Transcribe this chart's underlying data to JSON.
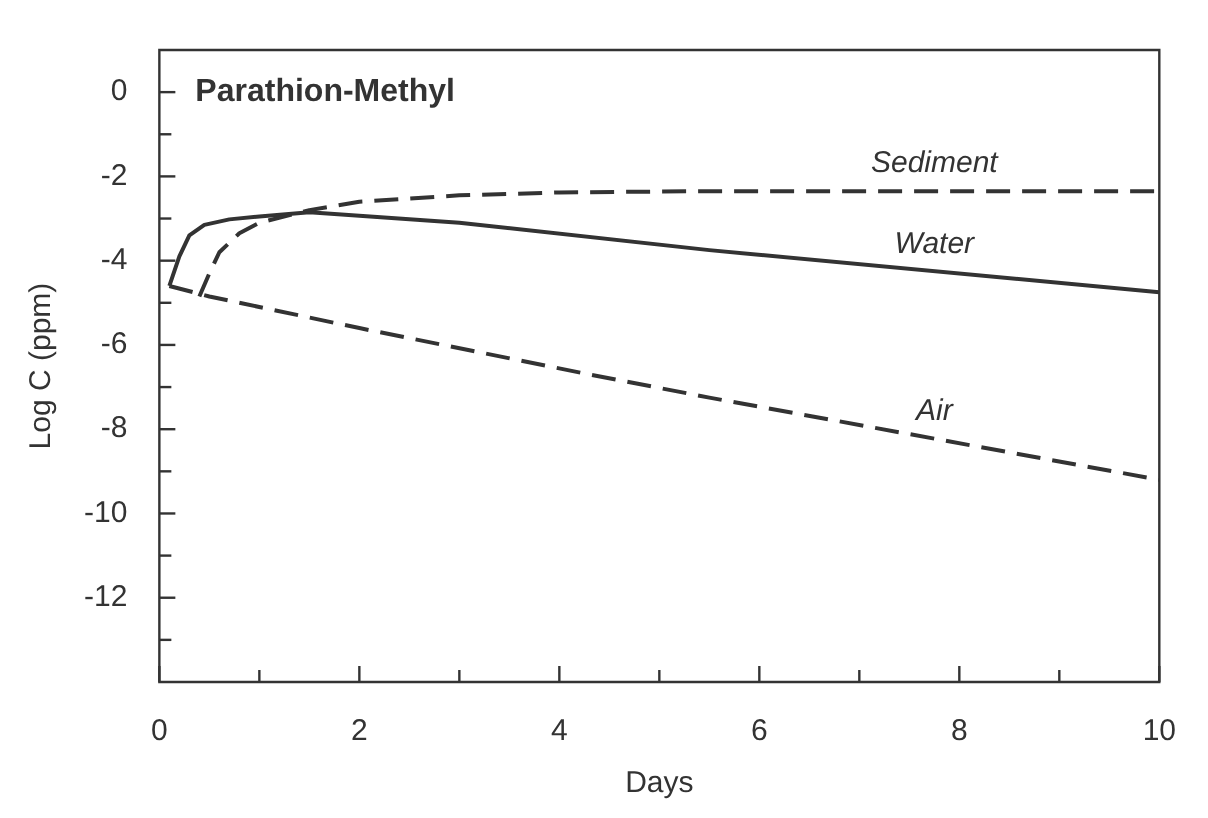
{
  "chart_data": {
    "type": "line",
    "title": "Parathion-Methyl",
    "xlabel": "Days",
    "ylabel": "Log C (ppm)",
    "xlim": [
      0,
      10
    ],
    "xticks": [
      0,
      {
        "value": 1,
        "label": null
      },
      2,
      {
        "value": 3,
        "label": null
      },
      4,
      {
        "value": 5,
        "label": null
      },
      6,
      {
        "value": 7,
        "label": null
      },
      8,
      {
        "value": 9,
        "label": null
      },
      10
    ],
    "ylim": [
      -14,
      1
    ],
    "yticks": [
      {
        "value": -13,
        "label": null
      },
      -12,
      {
        "value": -11,
        "label": null
      },
      -10,
      {
        "value": -9,
        "label": null
      },
      -8,
      {
        "value": -7,
        "label": null
      },
      -6,
      {
        "value": -5,
        "label": null
      },
      -4,
      {
        "value": -3,
        "label": null
      },
      -2,
      {
        "value": -1,
        "label": null
      },
      0
    ],
    "grid": false,
    "legend": false,
    "marker": "none",
    "series": [
      {
        "name": "Sediment",
        "color": "#333333",
        "line_style": "dashed",
        "x": [
          0.4,
          0.5,
          0.6,
          0.8,
          1.0,
          1.5,
          2,
          3,
          4,
          5.5,
          10
        ],
        "values": [
          -4.85,
          -4.3,
          -3.8,
          -3.35,
          -3.1,
          -2.8,
          -2.6,
          -2.45,
          -2.38,
          -2.35,
          -2.35
        ]
      },
      {
        "name": "Water",
        "color": "#333333",
        "line_style": "solid",
        "x": [
          0.1,
          0.2,
          0.3,
          0.45,
          0.7,
          1.0,
          1.5,
          3,
          5.5,
          10
        ],
        "values": [
          -4.6,
          -3.9,
          -3.4,
          -3.15,
          -3.02,
          -2.95,
          -2.85,
          -3.1,
          -3.75,
          -4.75
        ]
      },
      {
        "name": "Air",
        "color": "#333333",
        "line_style": "dashed",
        "x": [
          0.1,
          0.5,
          2,
          4.3,
          5.5,
          10
        ],
        "values": [
          -4.6,
          -4.85,
          -5.6,
          -6.7,
          -7.25,
          -9.2
        ]
      }
    ]
  }
}
